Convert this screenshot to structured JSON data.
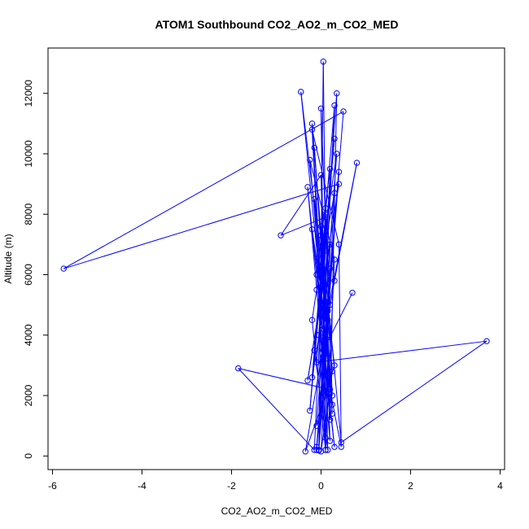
{
  "chart_data": {
    "type": "scatter",
    "title": "ATOM1 Southbound CO2_AO2_m_CO2_MED",
    "xlabel": "CO2_AO2_m_CO2_MED",
    "ylabel": "Altitude (m)",
    "xlim": [
      -6.1,
      4.1
    ],
    "ylim": [
      -450,
      13500
    ],
    "xticks": [
      -6,
      -4,
      -2,
      0,
      2,
      4
    ],
    "yticks": [
      0,
      2000,
      4000,
      6000,
      8000,
      10000,
      12000
    ],
    "grid": false,
    "legend": "none",
    "series_style": "points connected by lines, open circles",
    "color": "#0000ff",
    "series": [
      {
        "points": [
          [
            0.7,
            5400
          ],
          [
            0.05,
            3500
          ],
          [
            0.3,
            300
          ],
          [
            -0.1,
            6000
          ],
          [
            0.2,
            9500
          ],
          [
            -0.05,
            200
          ],
          [
            0.15,
            4000
          ],
          [
            -0.2,
            7500
          ],
          [
            0.25,
            2000
          ],
          [
            0.0,
            11500
          ],
          [
            0.1,
            600
          ],
          [
            -0.15,
            8500
          ],
          [
            0.3,
            3000
          ],
          [
            -0.1,
            1000
          ],
          [
            0.35,
            10000
          ],
          [
            -0.2,
            4500
          ],
          [
            0.1,
            200
          ],
          [
            0.2,
            7000
          ],
          [
            -0.3,
            2500
          ],
          [
            0.4,
            9000
          ],
          [
            -5.75,
            6200
          ],
          [
            0.5,
            11400
          ],
          [
            -0.1,
            300
          ],
          [
            0.2,
            5000
          ],
          [
            0.1,
            8000
          ],
          [
            -0.25,
            1500
          ],
          [
            0.3,
            10500
          ],
          [
            -0.15,
            3500
          ],
          [
            0.15,
            200
          ],
          [
            0.0,
            9300
          ],
          [
            -0.9,
            7300
          ],
          [
            0.1,
            7900
          ],
          [
            0.05,
            4200
          ],
          [
            -0.2,
            11000
          ],
          [
            0.25,
            2800
          ],
          [
            0.0,
            150
          ],
          [
            0.3,
            8700
          ],
          [
            -0.1,
            5500
          ],
          [
            0.2,
            1200
          ],
          [
            0.35,
            12000
          ],
          [
            -0.05,
            4000
          ],
          [
            0.1,
            200
          ],
          [
            0.3,
            6500
          ],
          [
            -0.25,
            9800
          ],
          [
            0.2,
            2200
          ],
          [
            -1.85,
            2900
          ],
          [
            -0.15,
            200
          ],
          [
            0.1,
            8200
          ],
          [
            0.05,
            3300
          ],
          [
            0.45,
            300
          ],
          [
            0.4,
            7000
          ],
          [
            -0.2,
            10800
          ],
          [
            0.1,
            2000
          ],
          [
            -0.35,
            150
          ],
          [
            0.3,
            5800
          ],
          [
            0.8,
            9700
          ],
          [
            0.15,
            4800
          ],
          [
            -0.05,
            180
          ],
          [
            0.05,
            13050
          ],
          [
            0.1,
            6800
          ],
          [
            -0.1,
            3100
          ],
          [
            3.7,
            3800
          ],
          [
            0.45,
            450
          ],
          [
            0.0,
            7600
          ],
          [
            0.25,
            1700
          ],
          [
            -0.45,
            12050
          ],
          [
            0.15,
            4500
          ],
          [
            0.4,
            9400
          ],
          [
            -0.1,
            200
          ],
          [
            0.2,
            6200
          ],
          [
            -0.2,
            2600
          ],
          [
            0.3,
            11600
          ],
          [
            0.05,
            3800
          ],
          [
            -0.3,
            8900
          ],
          [
            0.2,
            500
          ],
          [
            0.1,
            5100
          ],
          [
            -0.15,
            10200
          ],
          [
            0.25,
            1400
          ],
          [
            0.0,
            7300
          ],
          [
            0.1,
            3500
          ]
        ]
      }
    ]
  }
}
